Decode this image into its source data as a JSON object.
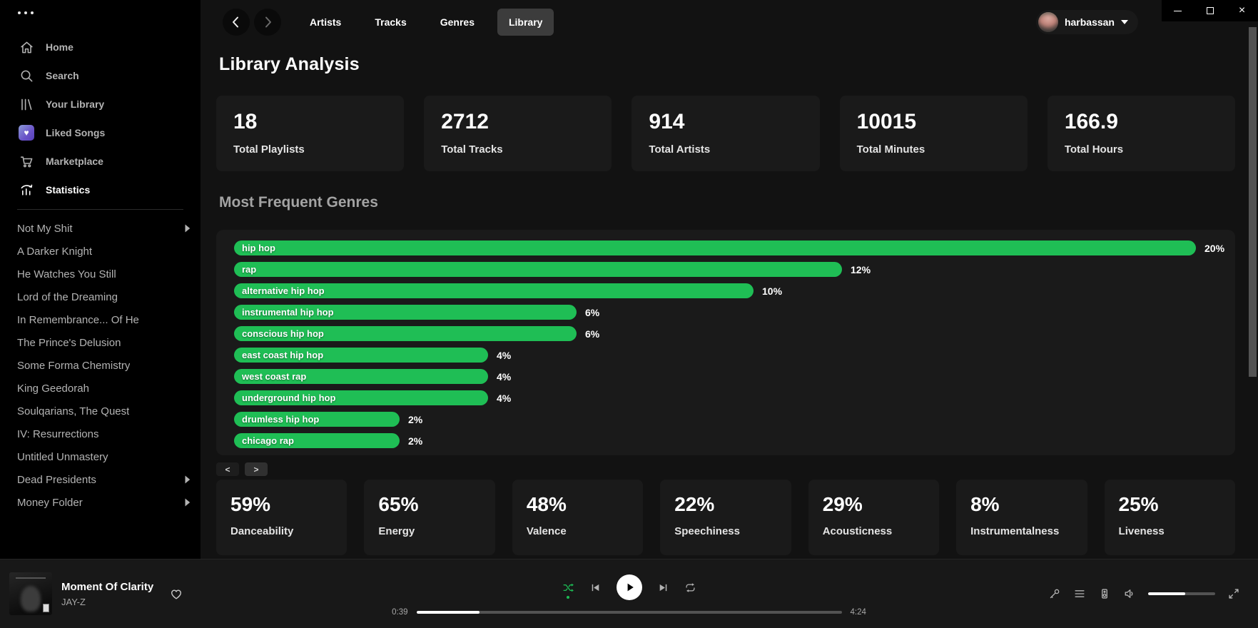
{
  "window": {
    "controls": [
      {
        "name": "minimize"
      },
      {
        "name": "maximize"
      },
      {
        "name": "close"
      }
    ]
  },
  "sidebar": {
    "menu_icon": "ellipsis-icon",
    "nav": [
      {
        "label": "Home",
        "icon": "home-icon",
        "active": false
      },
      {
        "label": "Search",
        "icon": "search-icon",
        "active": false
      },
      {
        "label": "Your Library",
        "icon": "library-icon",
        "active": false
      },
      {
        "label": "Liked Songs",
        "icon": "liked-songs-heart-icon",
        "active": false
      },
      {
        "label": "Marketplace",
        "icon": "cart-icon",
        "active": false
      },
      {
        "label": "Statistics",
        "icon": "stats-icon",
        "active": true
      }
    ],
    "playlists": [
      {
        "label": "Not My Shit",
        "has_submenu": true
      },
      {
        "label": "A Darker Knight",
        "has_submenu": false
      },
      {
        "label": "He Watches You Still",
        "has_submenu": false
      },
      {
        "label": "Lord of the Dreaming",
        "has_submenu": false
      },
      {
        "label": "In Remembrance... Of He",
        "has_submenu": false
      },
      {
        "label": "The Prince's Delusion",
        "has_submenu": false
      },
      {
        "label": "Some Forma Chemistry",
        "has_submenu": false
      },
      {
        "label": "King Geedorah",
        "has_submenu": false
      },
      {
        "label": "Soulqarians, The Quest",
        "has_submenu": false
      },
      {
        "label": "IV: Resurrections",
        "has_submenu": false
      },
      {
        "label": "Untitled Unmastery",
        "has_submenu": false
      },
      {
        "label": "Dead Presidents",
        "has_submenu": true
      },
      {
        "label": "Money Folder",
        "has_submenu": true
      }
    ]
  },
  "topbar": {
    "back_icon": "chevron-left-icon",
    "forward_icon": "chevron-right-icon",
    "tabs": [
      {
        "label": "Artists",
        "active": false
      },
      {
        "label": "Tracks",
        "active": false
      },
      {
        "label": "Genres",
        "active": false
      },
      {
        "label": "Library",
        "active": true
      }
    ],
    "user": {
      "name": "harbassan",
      "caret_icon": "caret-down-icon"
    }
  },
  "page": {
    "title": "Library Analysis",
    "stat_cards": [
      {
        "value": "18",
        "label": "Total Playlists"
      },
      {
        "value": "2712",
        "label": "Total Tracks"
      },
      {
        "value": "914",
        "label": "Total Artists"
      },
      {
        "value": "10015",
        "label": "Total Minutes"
      },
      {
        "value": "166.9",
        "label": "Total Hours"
      }
    ],
    "genres_section_title": "Most Frequent Genres",
    "pager": {
      "prev": "<",
      "next": ">"
    },
    "feature_cards": [
      {
        "value": "59%",
        "label": "Danceability"
      },
      {
        "value": "65%",
        "label": "Energy"
      },
      {
        "value": "48%",
        "label": "Valence"
      },
      {
        "value": "22%",
        "label": "Speechiness"
      },
      {
        "value": "29%",
        "label": "Acousticness"
      },
      {
        "value": "8%",
        "label": "Instrumentalness"
      },
      {
        "value": "25%",
        "label": "Liveness"
      }
    ]
  },
  "chart_data": {
    "type": "bar",
    "orientation": "horizontal",
    "title": "Most Frequent Genres",
    "categories": [
      "hip hop",
      "rap",
      "alternative hip hop",
      "instrumental hip hop",
      "conscious hip hop",
      "east coast hip hop",
      "west coast rap",
      "underground hip hop",
      "drumless hip hop",
      "chicago rap"
    ],
    "values": [
      20,
      12,
      10,
      6,
      6,
      4,
      4,
      4,
      2,
      2
    ],
    "unit": "%",
    "xlim": [
      0,
      20
    ],
    "bar_color": "#1fbe55",
    "grid": false,
    "legend": false
  },
  "player": {
    "track": {
      "title": "Moment Of Clarity",
      "artist": "JAY-Z"
    },
    "elapsed": "0:39",
    "duration": "4:24",
    "progress_pct": 14.8,
    "shuffle_active": true,
    "volume_pct": 55
  },
  "colors": {
    "accent_green": "#1db954",
    "bar_green": "#1fbe55",
    "main_background": "#121212",
    "card_background": "#1a1a1a",
    "player_background": "#181818"
  }
}
